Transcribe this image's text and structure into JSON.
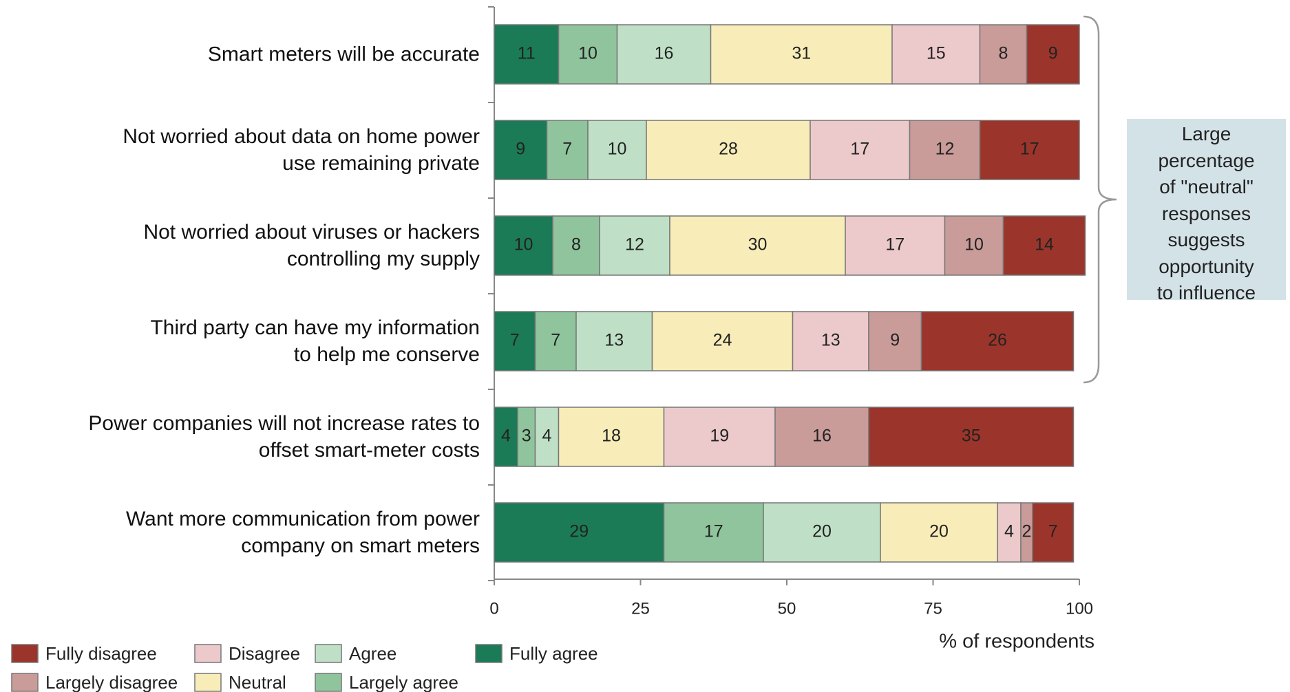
{
  "chart_data": {
    "type": "stacked_bar_horizontal",
    "categories": [
      "Smart meters will be accurate",
      "Not worried about data on home power\nuse remaining private",
      "Not worried about viruses or hackers\ncontrolling my supply",
      "Third party can have my information\nto help me conserve",
      "Power companies will not increase rates to\noffset smart-meter costs",
      "Want more communication from power\ncompany on smart meters"
    ],
    "series": [
      {
        "name": "Fully agree",
        "color": "#1b7b57",
        "values": [
          11,
          9,
          10,
          7,
          4,
          29
        ]
      },
      {
        "name": "Largely agree",
        "color": "#8fc49d",
        "values": [
          10,
          7,
          8,
          7,
          3,
          17
        ]
      },
      {
        "name": "Agree",
        "color": "#bfe0c6",
        "values": [
          16,
          10,
          12,
          13,
          4,
          20
        ]
      },
      {
        "name": "Neutral",
        "color": "#f8edb9",
        "values": [
          31,
          28,
          30,
          24,
          18,
          20
        ]
      },
      {
        "name": "Disagree",
        "color": "#ecc9cb",
        "values": [
          15,
          17,
          17,
          13,
          19,
          4
        ]
      },
      {
        "name": "Largely disagree",
        "color": "#c99b99",
        "values": [
          8,
          12,
          10,
          9,
          16,
          2
        ]
      },
      {
        "name": "Fully disagree",
        "color": "#9b352b",
        "values": [
          9,
          17,
          14,
          26,
          35,
          7
        ]
      }
    ],
    "xlabel": "% of respondents",
    "xlim": [
      0,
      100
    ],
    "xticks": [
      0,
      25,
      50,
      75,
      100
    ],
    "annotation": "Large\npercentage\nof \"neutral\"\nresponses\nsuggests\nopportunity\nto influence"
  }
}
